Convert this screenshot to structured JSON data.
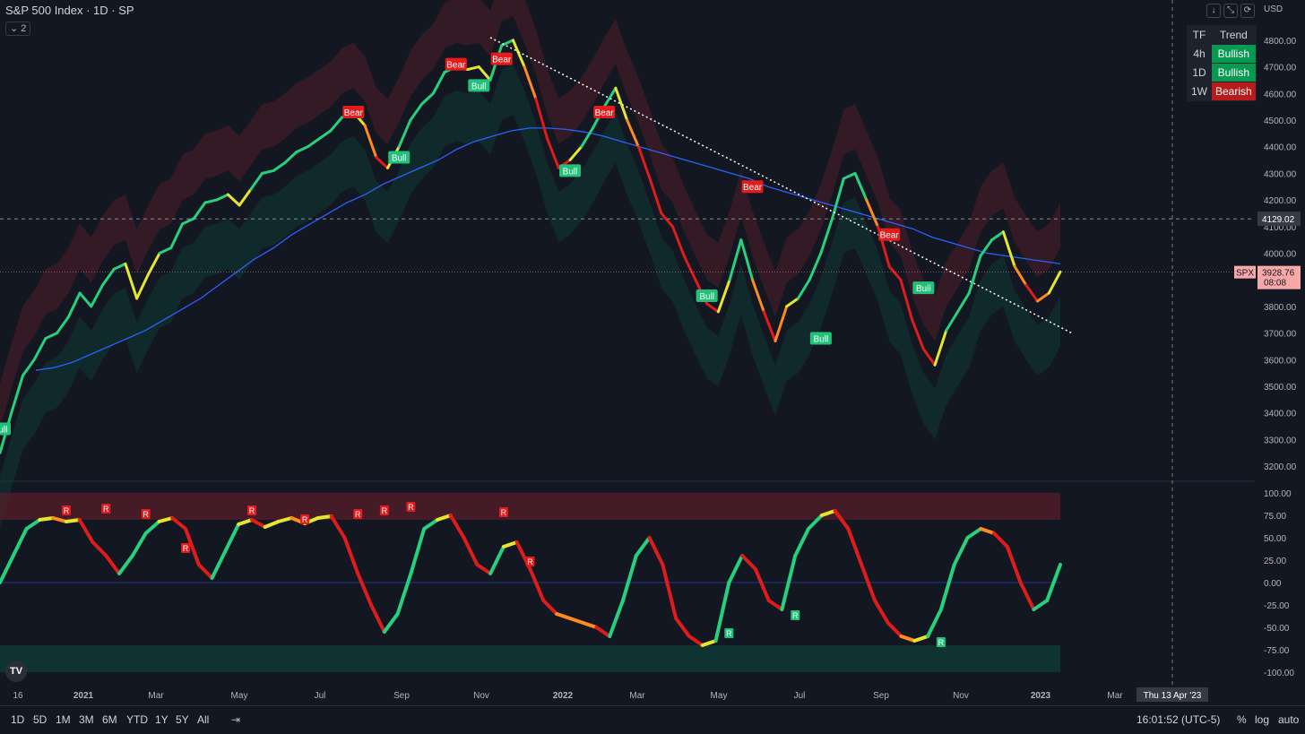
{
  "header": {
    "title": "S&P 500 Index · 1D · SP",
    "collapse_label": "⌄ 2",
    "currency": "USD"
  },
  "window_icons": [
    "↓",
    "⤡",
    "⟳"
  ],
  "trend_table": {
    "headers": [
      "TF",
      "Trend"
    ],
    "rows": [
      {
        "tf": "4h",
        "trend": "Bullish"
      },
      {
        "tf": "1D",
        "trend": "Bullish"
      },
      {
        "tf": "1W",
        "trend": "Bearish"
      }
    ]
  },
  "colors": {
    "bull": "#089950",
    "bear": "#b71c1c",
    "ma": "#2962ff",
    "background": "#131722"
  },
  "chart_data": [
    {
      "type": "line",
      "title": "S&P 500 Index · 1D · SP",
      "symbol": "SPX",
      "last_price": "3928.76",
      "countdown": "08:08",
      "crosshair_price": "4129.02",
      "crosshair_date": "Thu 13 Apr '23",
      "ylim": [
        3150,
        4850
      ],
      "y_ticks": [
        "4800.00",
        "4700.00",
        "4600.00",
        "4500.00",
        "4400.00",
        "4300.00",
        "4200.00",
        "4100.00",
        "4000.00",
        "3900.00",
        "3800.00",
        "3700.00",
        "3600.00",
        "3500.00",
        "3400.00",
        "3300.00",
        "3200.00"
      ],
      "x_ticks": [
        "16",
        "2021",
        "Mar",
        "May",
        "Jul",
        "Sep",
        "Nov",
        "2022",
        "Mar",
        "May",
        "Jul",
        "Sep",
        "Nov",
        "2023",
        "Mar"
      ],
      "series": [
        {
          "values": [
            3250,
            3400,
            3540,
            3600,
            3680,
            3700,
            3760,
            3850,
            3800,
            3880,
            3940,
            3960,
            3830,
            3920,
            4000,
            4020,
            4110,
            4130,
            4190,
            4200,
            4220,
            4180,
            4240,
            4300,
            4310,
            4340,
            4380,
            4400,
            4430,
            4460,
            4510,
            4530,
            4480,
            4360,
            4320,
            4400,
            4500,
            4560,
            4600,
            4680,
            4700,
            4690,
            4700,
            4650,
            4780,
            4800,
            4700,
            4580,
            4430,
            4320,
            4350,
            4400,
            4470,
            4550,
            4620,
            4500,
            4400,
            4280,
            4150,
            4100,
            3990,
            3900,
            3810,
            3780,
            3900,
            4050,
            3900,
            3780,
            3670,
            3800,
            3830,
            3900,
            4000,
            4130,
            4280,
            4300,
            4200,
            4100,
            3950,
            3900,
            3750,
            3640,
            3580,
            3710,
            3780,
            3850,
            3990,
            4050,
            4080,
            3950,
            3880,
            3820,
            3850,
            3930
          ]
        },
        {
          "values": [
            3560,
            3570,
            3590,
            3620,
            3650,
            3680,
            3710,
            3750,
            3790,
            3830,
            3880,
            3930,
            3980,
            4020,
            4070,
            4110,
            4150,
            4190,
            4220,
            4260,
            4290,
            4320,
            4350,
            4390,
            4420,
            4440,
            4460,
            4470,
            4470,
            4465,
            4455,
            4440,
            4420,
            4400,
            4380,
            4360,
            4340,
            4320,
            4300,
            4280,
            4250,
            4230,
            4210,
            4190,
            4170,
            4150,
            4130,
            4110,
            4090,
            4060,
            4040,
            4020,
            4000,
            3990,
            3980,
            3970,
            3960
          ]
        }
      ],
      "signals": [
        {
          "label": "Bull",
          "x": 0,
          "y": 3340
        },
        {
          "label": "Bear",
          "x": 31,
          "y": 4530
        },
        {
          "label": "Bull",
          "x": 35,
          "y": 4360
        },
        {
          "label": "Bear",
          "x": 40,
          "y": 4710
        },
        {
          "label": "Bull",
          "x": 42,
          "y": 4630
        },
        {
          "label": "Bear",
          "x": 44,
          "y": 4730
        },
        {
          "label": "Bull",
          "x": 50,
          "y": 4310
        },
        {
          "label": "Bear",
          "x": 53,
          "y": 4530
        },
        {
          "label": "Bull",
          "x": 62,
          "y": 3840
        },
        {
          "label": "Bear",
          "x": 66,
          "y": 4250
        },
        {
          "label": "Bull",
          "x": 72,
          "y": 3680
        },
        {
          "label": "Bear",
          "x": 78,
          "y": 4070
        },
        {
          "label": "Bull",
          "x": 81,
          "y": 3870
        }
      ],
      "trendline": [
        [
          43,
          4810
        ],
        [
          94,
          3700
        ]
      ]
    },
    {
      "type": "line",
      "ylim": [
        -105,
        105
      ],
      "y_ticks": [
        "100.00",
        "75.00",
        "50.00",
        "25.00",
        "0.00",
        "-25.00",
        "-50.00",
        "-75.00",
        "-100.00"
      ],
      "series": [
        {
          "values": [
            0,
            30,
            60,
            70,
            72,
            68,
            70,
            45,
            30,
            10,
            30,
            55,
            68,
            72,
            60,
            20,
            5,
            35,
            65,
            70,
            62,
            68,
            72,
            66,
            72,
            74,
            50,
            10,
            -25,
            -55,
            -35,
            10,
            60,
            70,
            75,
            50,
            20,
            10,
            40,
            45,
            15,
            -20,
            -35,
            -40,
            -45,
            -50,
            -60,
            -20,
            30,
            50,
            20,
            -40,
            -60,
            -70,
            -65,
            0,
            30,
            15,
            -20,
            -30,
            30,
            60,
            75,
            80,
            60,
            20,
            -20,
            -45,
            -60,
            -65,
            -60,
            -30,
            20,
            50,
            60,
            55,
            40,
            0,
            -30,
            -20,
            20
          ]
        }
      ],
      "divergence_labels": [
        {
          "label": "R",
          "x": 5,
          "y": 72
        },
        {
          "label": "R",
          "x": 8,
          "y": 74
        },
        {
          "label": "R",
          "x": 11,
          "y": 68
        },
        {
          "label": "R",
          "x": 14,
          "y": 30
        },
        {
          "label": "R",
          "x": 19,
          "y": 72
        },
        {
          "label": "R",
          "x": 23,
          "y": 62
        },
        {
          "label": "R",
          "x": 27,
          "y": 68
        },
        {
          "label": "R",
          "x": 29,
          "y": 72
        },
        {
          "label": "R",
          "x": 31,
          "y": 76
        },
        {
          "label": "R",
          "x": 38,
          "y": 70
        },
        {
          "label": "R",
          "x": 40,
          "y": 15
        },
        {
          "label": "R",
          "x": 55,
          "y": -65
        },
        {
          "label": "R",
          "x": 60,
          "y": -45
        },
        {
          "label": "R",
          "x": 71,
          "y": -75
        }
      ]
    }
  ],
  "footer": {
    "timeframes": [
      "1D",
      "5D",
      "1M",
      "3M",
      "6M",
      "YTD",
      "1Y",
      "5Y",
      "All"
    ],
    "clock": "16:01:52 (UTC-5)",
    "percent_label": "%",
    "log_label": "log",
    "auto_label": "auto"
  }
}
